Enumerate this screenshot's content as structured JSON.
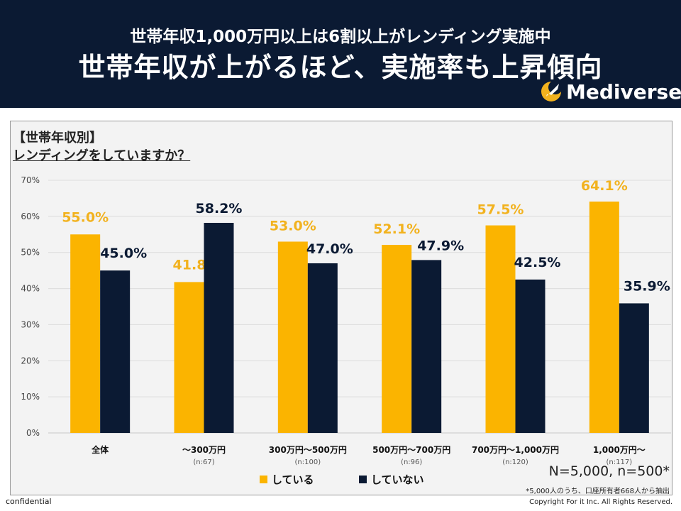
{
  "header": {
    "subtitle": "世帯年収1,000万円以上は6割以上がレンディング実施中",
    "title": "世帯年収が上がるほど、実施率も上昇傾向",
    "logo_text": "Mediverse",
    "logo_icon": "rocket-moon-icon"
  },
  "colors": {
    "header_bg": "#0b1a33",
    "series_yes": "#fbb400",
    "series_no": "#0b1a33",
    "label_yes": "#f2b21e",
    "label_no": "#0b1a33"
  },
  "chart_data": {
    "type": "bar",
    "section_label": "【世帯年収別】",
    "question": "レンディングをしていますか？",
    "categories": [
      "全体",
      "～300万円",
      "300万円～500万円",
      "500万円～700万円",
      "700万円～1,000万円",
      "1,000万円～"
    ],
    "sample_sizes": [
      "",
      "(n:67)",
      "(n:100)",
      "(n:96)",
      "(n:120)",
      "(n:117)"
    ],
    "series": [
      {
        "name": "している",
        "values": [
          55.0,
          41.8,
          53.0,
          52.1,
          57.5,
          64.1
        ]
      },
      {
        "name": "していない",
        "values": [
          45.0,
          58.2,
          47.0,
          47.9,
          42.5,
          35.9
        ]
      }
    ],
    "y_ticks": [
      "0%",
      "10%",
      "20%",
      "30%",
      "40%",
      "50%",
      "60%",
      "70%"
    ],
    "ylim": [
      0,
      70
    ],
    "grid": true,
    "value_suffix": "%"
  },
  "notes": {
    "sample": "N=5,000, n=500*",
    "extract": "*5,000人のうち、口座所有者668人から抽出",
    "confidential": "confidential",
    "copyright": "Copyright For it Inc. All Rights Reserved."
  }
}
